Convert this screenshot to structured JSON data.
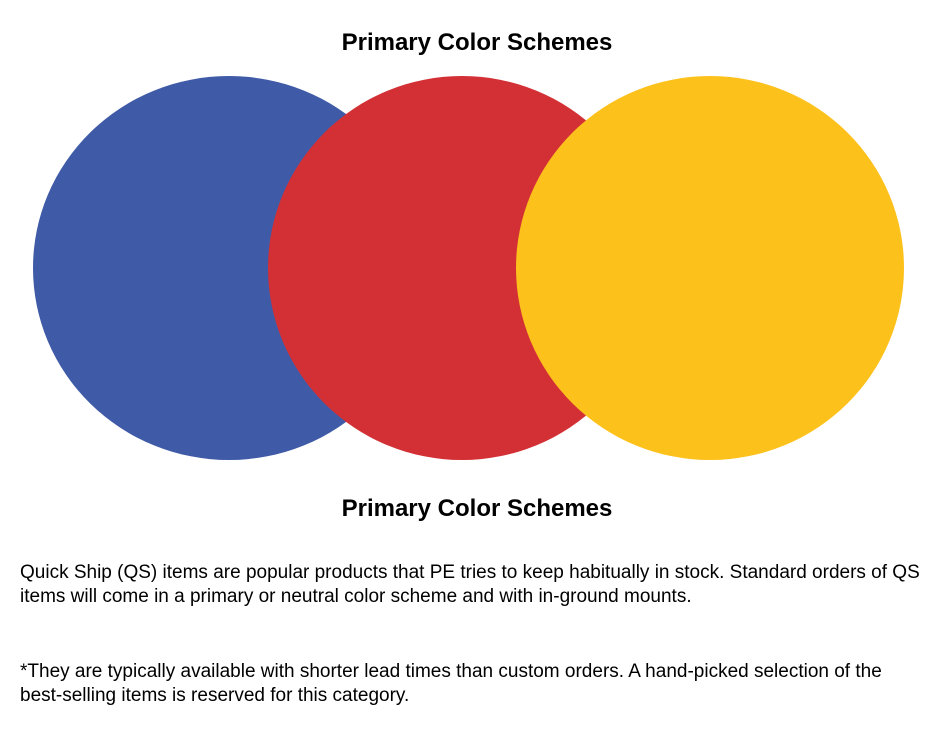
{
  "header": {
    "title": "Primary Color Schemes"
  },
  "figure": {
    "caption": "Primary Color Schemes",
    "circles": [
      {
        "name": "blue",
        "color": "#3f5aa6"
      },
      {
        "name": "red",
        "color": "#d33036"
      },
      {
        "name": "yellow",
        "color": "#fdc11c"
      }
    ]
  },
  "body": {
    "paragraph_1": "Quick Ship (QS) items are popular products that PE tries to keep habitually in stock. Standard orders of QS items will come in a primary or neutral color scheme and with in-ground mounts.",
    "paragraph_2": "*They are typically available with shorter lead times than custom orders. A hand-picked selection of the best-selling items is reserved for this category."
  }
}
